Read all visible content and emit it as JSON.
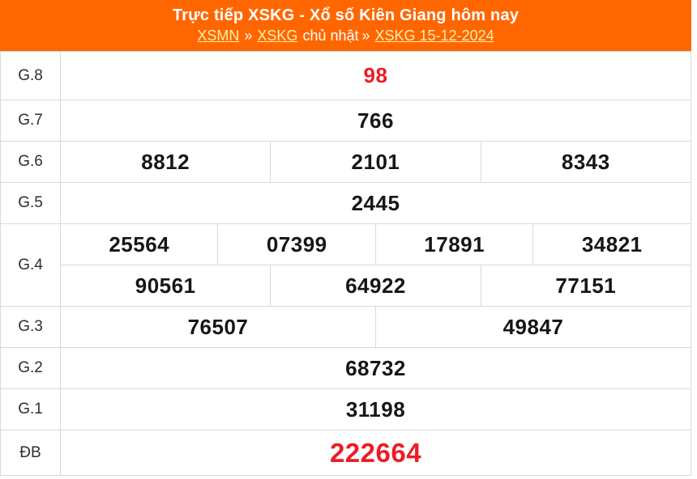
{
  "header": {
    "title": "Trực tiếp XSKG - Xổ số Kiên Giang hôm nay",
    "breadcrumb": [
      {
        "text": "XSMN",
        "link": true
      },
      {
        "text": "»",
        "link": false
      },
      {
        "text": "XSKG",
        "link": true
      },
      {
        "text": "chủ nhật",
        "link": false
      },
      {
        "text": "»",
        "link": false
      },
      {
        "text": "XSKG 15-12-2024",
        "link": true
      }
    ]
  },
  "table": {
    "rows": [
      {
        "label": "G.8",
        "highlight": true,
        "lines": [
          [
            "98"
          ]
        ]
      },
      {
        "label": "G.7",
        "lines": [
          [
            "766"
          ]
        ]
      },
      {
        "label": "G.6",
        "lines": [
          [
            "8812",
            "2101",
            "8343"
          ]
        ]
      },
      {
        "label": "G.5",
        "lines": [
          [
            "2445"
          ]
        ]
      },
      {
        "label": "G.4",
        "lines": [
          [
            "25564",
            "07399",
            "17891",
            "34821"
          ],
          [
            "90561",
            "64922",
            "77151"
          ]
        ]
      },
      {
        "label": "G.3",
        "lines": [
          [
            "76507",
            "49847"
          ]
        ]
      },
      {
        "label": "G.2",
        "lines": [
          [
            "68732"
          ]
        ]
      },
      {
        "label": "G.1",
        "lines": [
          [
            "31198"
          ]
        ]
      },
      {
        "label": "ĐB",
        "highlight": true,
        "large": true,
        "lines": [
          [
            "222664"
          ]
        ]
      }
    ]
  },
  "colors": {
    "header_orange": "#FF6600",
    "link_yellow": "#FFEFA8",
    "number_red": "#ED1C24",
    "border_gray": "#D9D9D5"
  }
}
